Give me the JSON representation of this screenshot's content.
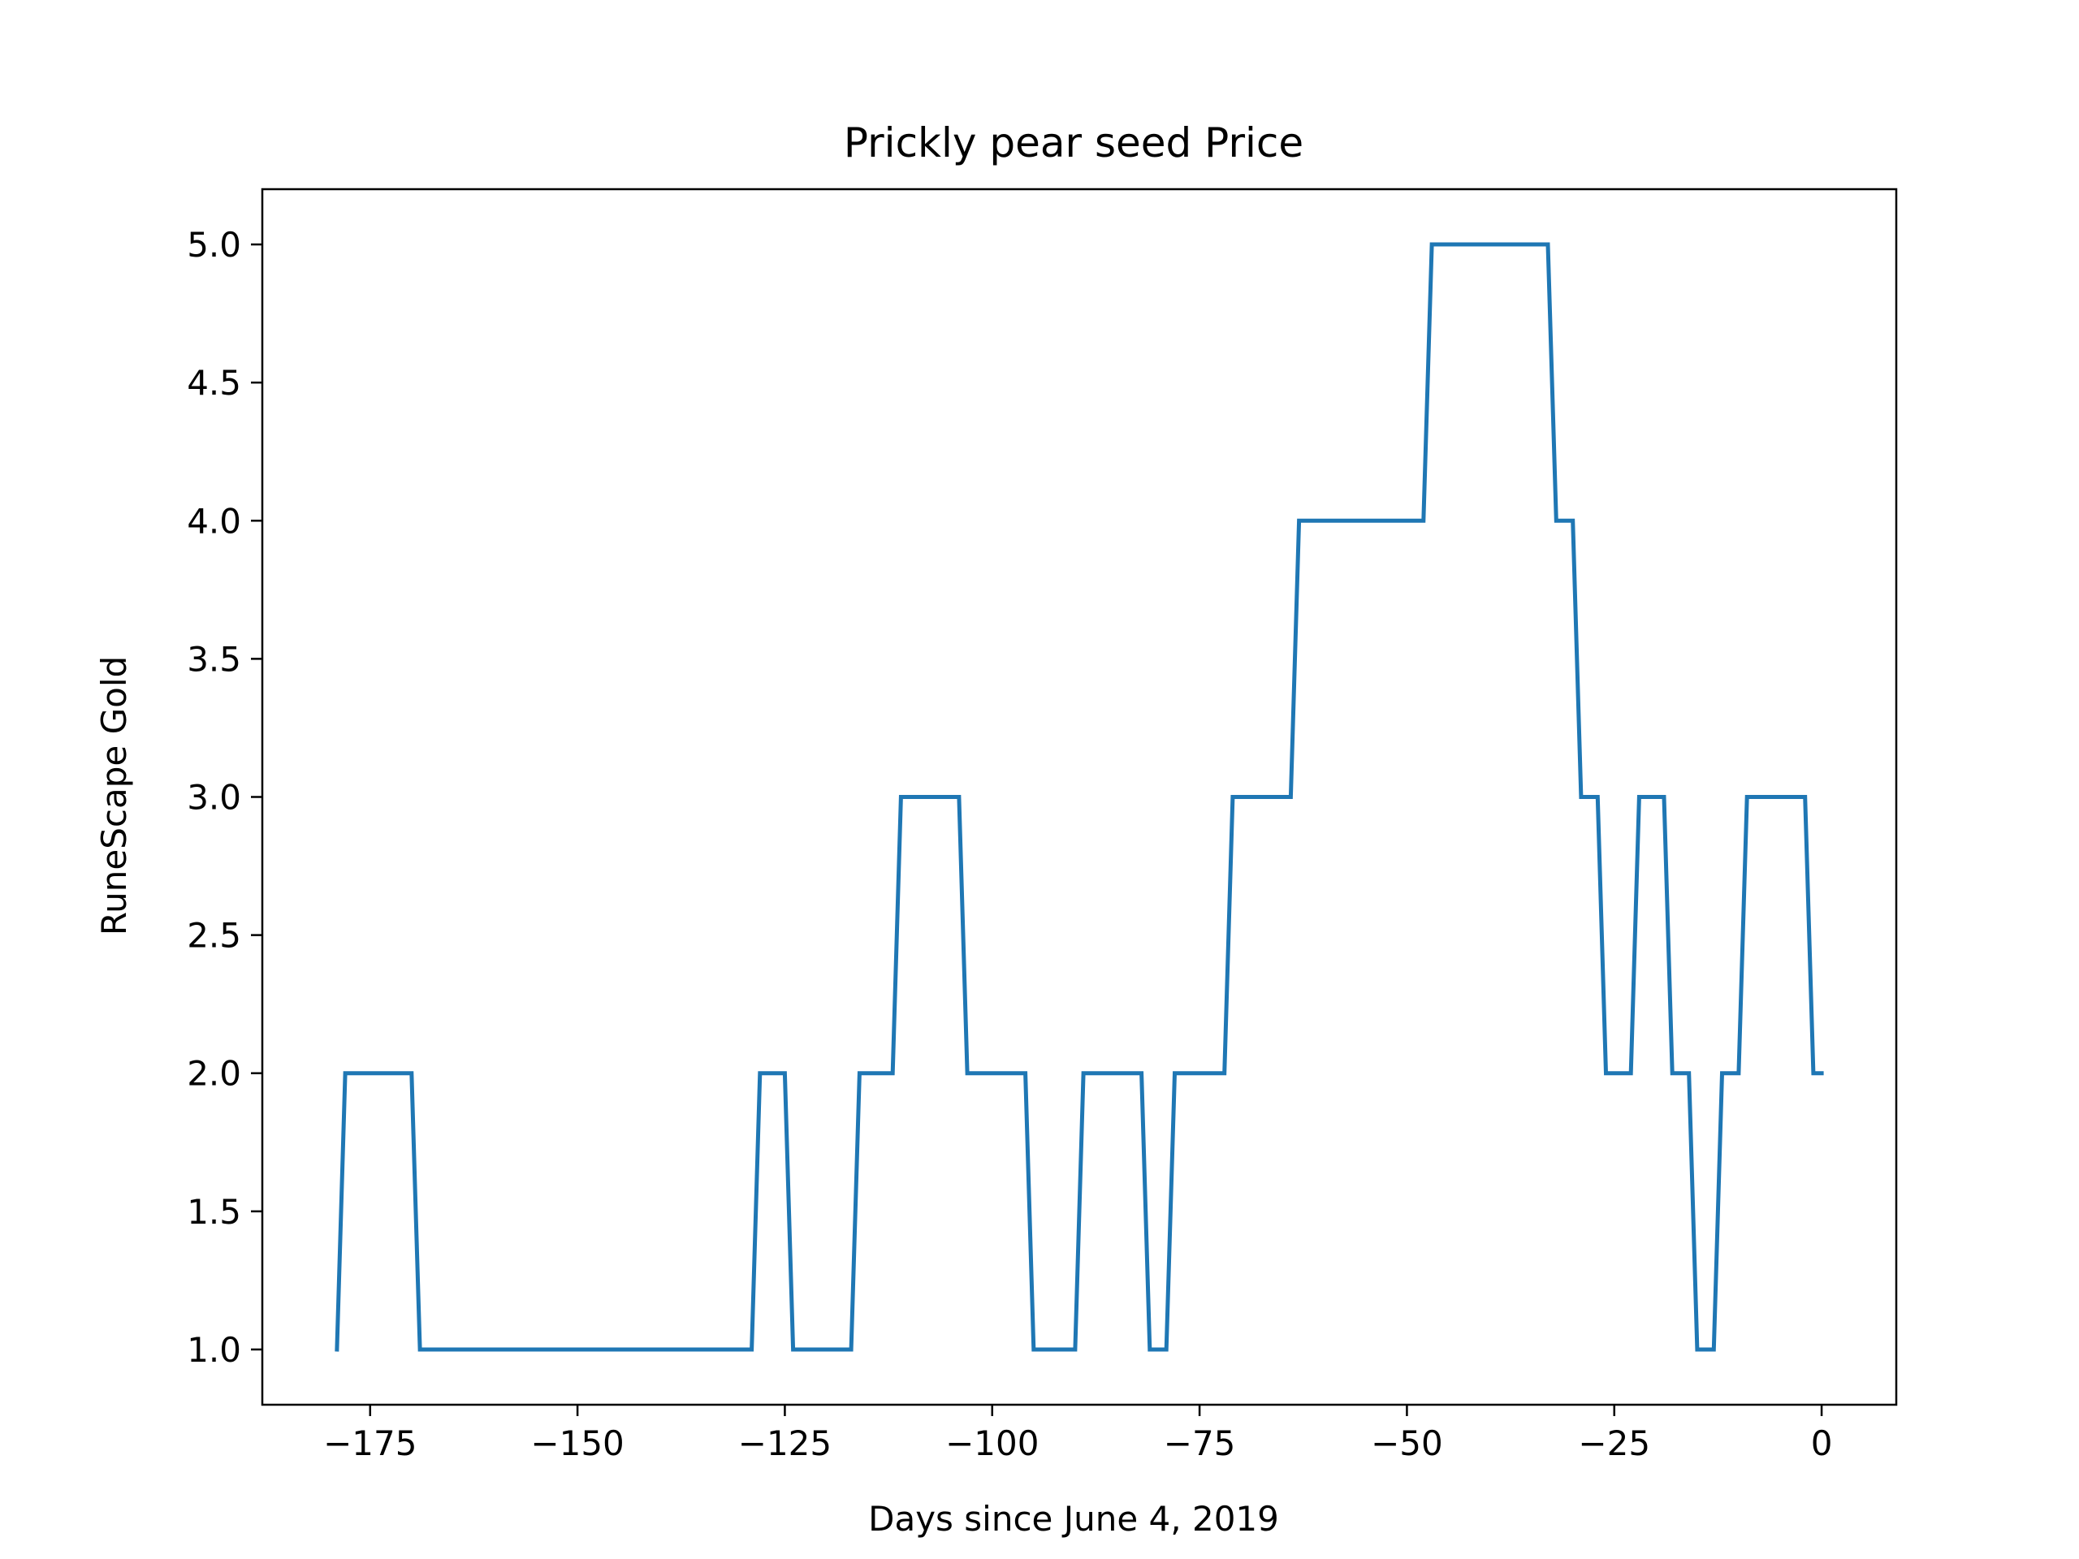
{
  "chart_data": {
    "type": "line",
    "title": "Prickly pear seed Price",
    "xlabel": "Days since June 4, 2019",
    "ylabel": "RuneScape Gold",
    "xlim": [
      -188,
      9
    ],
    "ylim": [
      0.8,
      5.2
    ],
    "xticks": [
      {
        "value": -175,
        "label": "−175"
      },
      {
        "value": -150,
        "label": "−150"
      },
      {
        "value": -125,
        "label": "−125"
      },
      {
        "value": -100,
        "label": "−100"
      },
      {
        "value": -75,
        "label": "−75"
      },
      {
        "value": -50,
        "label": "−50"
      },
      {
        "value": -25,
        "label": "−25"
      },
      {
        "value": 0,
        "label": "0"
      }
    ],
    "yticks": [
      {
        "value": 1.0,
        "label": "1.0"
      },
      {
        "value": 1.5,
        "label": "1.5"
      },
      {
        "value": 2.0,
        "label": "2.0"
      },
      {
        "value": 2.5,
        "label": "2.5"
      },
      {
        "value": 3.0,
        "label": "3.0"
      },
      {
        "value": 3.5,
        "label": "3.5"
      },
      {
        "value": 4.0,
        "label": "4.0"
      },
      {
        "value": 4.5,
        "label": "4.5"
      },
      {
        "value": 5.0,
        "label": "5.0"
      }
    ],
    "grid": false,
    "series": [
      {
        "color": "#1f77b4",
        "points": [
          [
            -179,
            1
          ],
          [
            -178,
            2
          ],
          [
            -170,
            2
          ],
          [
            -169,
            1
          ],
          [
            -129,
            1
          ],
          [
            -128,
            2
          ],
          [
            -125,
            2
          ],
          [
            -124,
            1
          ],
          [
            -117,
            1
          ],
          [
            -116,
            2
          ],
          [
            -112,
            2
          ],
          [
            -111,
            3
          ],
          [
            -104,
            3
          ],
          [
            -103,
            2
          ],
          [
            -96,
            2
          ],
          [
            -95,
            1
          ],
          [
            -90,
            1
          ],
          [
            -89,
            2
          ],
          [
            -82,
            2
          ],
          [
            -81,
            1
          ],
          [
            -79,
            1
          ],
          [
            -78,
            2
          ],
          [
            -72,
            2
          ],
          [
            -71,
            3
          ],
          [
            -64,
            3
          ],
          [
            -63,
            4
          ],
          [
            -48,
            4
          ],
          [
            -47,
            5
          ],
          [
            -33,
            5
          ],
          [
            -32,
            4
          ],
          [
            -30,
            4
          ],
          [
            -29,
            3
          ],
          [
            -27,
            3
          ],
          [
            -26,
            2
          ],
          [
            -23,
            2
          ],
          [
            -22,
            3
          ],
          [
            -19,
            3
          ],
          [
            -18,
            2
          ],
          [
            -16,
            2
          ],
          [
            -15,
            1
          ],
          [
            -13,
            1
          ],
          [
            -12,
            2
          ],
          [
            -10,
            2
          ],
          [
            -9,
            3
          ],
          [
            -2,
            3
          ],
          [
            -1,
            2
          ],
          [
            0,
            2
          ]
        ]
      }
    ]
  }
}
